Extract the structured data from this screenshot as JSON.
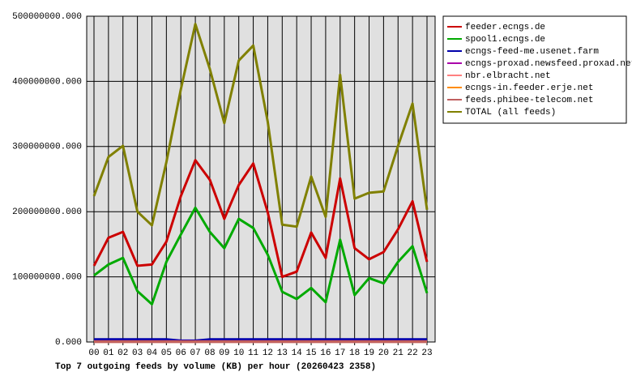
{
  "chart_data": {
    "type": "line",
    "title": "Top 7 outgoing feeds by volume (KB) per hour (20260423 2358)",
    "categories": [
      "00",
      "01",
      "02",
      "03",
      "04",
      "05",
      "06",
      "07",
      "08",
      "09",
      "10",
      "11",
      "12",
      "13",
      "14",
      "15",
      "16",
      "17",
      "18",
      "19",
      "20",
      "21",
      "22",
      "23"
    ],
    "series": [
      {
        "name": "feeder.ecngs.de",
        "color": "#cc0000",
        "values": [
          117000000,
          160000000,
          169000000,
          117000000,
          119000000,
          154000000,
          224000000,
          279000000,
          249000000,
          189000000,
          241000000,
          274000000,
          199000000,
          100000000,
          108000000,
          168000000,
          129000000,
          251000000,
          144000000,
          127000000,
          138000000,
          173000000,
          216000000,
          123000000
        ]
      },
      {
        "name": "spool1.ecngs.de",
        "color": "#00aa00",
        "values": [
          102000000,
          119000000,
          129000000,
          78000000,
          58000000,
          123000000,
          165000000,
          206000000,
          169000000,
          144000000,
          189000000,
          175000000,
          134000000,
          77000000,
          66000000,
          83000000,
          61000000,
          157000000,
          72000000,
          98000000,
          90000000,
          123000000,
          147000000,
          75000000
        ]
      },
      {
        "name": "ecngs-feed-me.usenet.farm",
        "color": "#0000aa",
        "values": [
          4000000,
          4000000,
          4000000,
          4000000,
          4000000,
          4000000,
          2000000,
          2000000,
          4000000,
          4000000,
          4000000,
          4000000,
          4000000,
          4000000,
          4000000,
          4000000,
          4000000,
          4000000,
          4000000,
          4000000,
          4000000,
          4000000,
          4000000,
          4000000
        ]
      },
      {
        "name": "ecngs-proxad.newsfeed.proxad.net",
        "color": "#aa00aa",
        "values": [
          1000000,
          1000000,
          1000000,
          1000000,
          1000000,
          1000000,
          1000000,
          1000000,
          1000000,
          1000000,
          1000000,
          1000000,
          1000000,
          1000000,
          1000000,
          1000000,
          1000000,
          1000000,
          1000000,
          1000000,
          1000000,
          1000000,
          1000000,
          1000000
        ]
      },
      {
        "name": "nbr.elbracht.net",
        "color": "#ff8080",
        "values": [
          500000,
          500000,
          500000,
          500000,
          500000,
          500000,
          500000,
          500000,
          500000,
          500000,
          500000,
          500000,
          500000,
          500000,
          500000,
          500000,
          500000,
          500000,
          500000,
          500000,
          500000,
          500000,
          500000,
          500000
        ]
      },
      {
        "name": "ecngs-in.feeder.erje.net",
        "color": "#ff8c00",
        "values": [
          500000,
          500000,
          500000,
          500000,
          500000,
          500000,
          500000,
          500000,
          500000,
          500000,
          500000,
          500000,
          500000,
          500000,
          500000,
          500000,
          500000,
          500000,
          500000,
          500000,
          500000,
          500000,
          500000,
          500000
        ]
      },
      {
        "name": "feeds.phibee-telecom.net",
        "color": "#c06060",
        "values": [
          300000,
          300000,
          300000,
          300000,
          300000,
          300000,
          300000,
          300000,
          300000,
          300000,
          300000,
          300000,
          300000,
          300000,
          300000,
          300000,
          300000,
          300000,
          300000,
          300000,
          300000,
          300000,
          300000,
          300000
        ]
      },
      {
        "name": "TOTAL (all feeds)",
        "color": "#808000",
        "values": [
          224000000,
          284000000,
          301000000,
          200000000,
          179000000,
          276000000,
          388000000,
          488000000,
          419000000,
          336000000,
          432000000,
          455000000,
          338000000,
          180000000,
          177000000,
          254000000,
          192000000,
          410000000,
          220000000,
          229000000,
          231000000,
          301000000,
          366000000,
          203000000
        ]
      }
    ],
    "ylim": [
      0,
      500000000
    ],
    "yticks": [
      {
        "value": 0,
        "label": "0.000"
      },
      {
        "value": 100000000,
        "label": "100000000.000"
      },
      {
        "value": 200000000,
        "label": "200000000.000"
      },
      {
        "value": 300000000,
        "label": "300000000.000"
      },
      {
        "value": 400000000,
        "label": "400000000.000"
      },
      {
        "value": 500000000,
        "label": "500000000.000"
      }
    ],
    "grid": true
  }
}
